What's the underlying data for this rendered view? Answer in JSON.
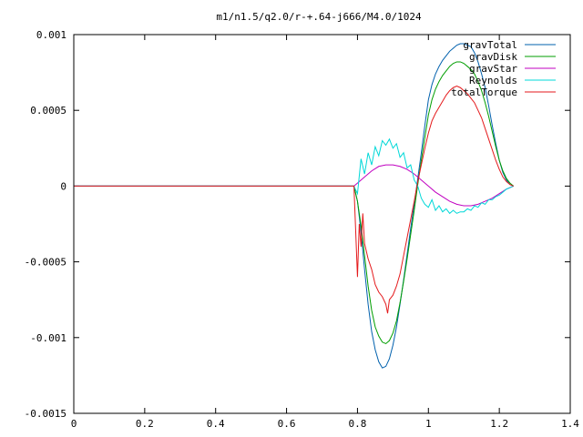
{
  "chart_data": {
    "type": "line",
    "title": "m1/n1.5/q2.0/r-+.64-j666/M4.0/1024",
    "xlabel": "",
    "ylabel": "",
    "xlim": [
      0,
      1.4
    ],
    "ylim": [
      -0.0015,
      0.001
    ],
    "xticks": [
      {
        "v": 0,
        "label": "0"
      },
      {
        "v": 0.2,
        "label": "0.2"
      },
      {
        "v": 0.4,
        "label": "0.4"
      },
      {
        "v": 0.6,
        "label": "0.6"
      },
      {
        "v": 0.8,
        "label": "0.8"
      },
      {
        "v": 1.0,
        "label": "1"
      },
      {
        "v": 1.2,
        "label": "1.2"
      },
      {
        "v": 1.4,
        "label": "1.4"
      }
    ],
    "yticks": [
      {
        "v": 0.001,
        "label": "0.001"
      },
      {
        "v": 0.0005,
        "label": "0.0005"
      },
      {
        "v": 0,
        "label": "0"
      },
      {
        "v": -0.0005,
        "label": "-0.0005"
      },
      {
        "v": -0.001,
        "label": "-0.001"
      },
      {
        "v": -0.0015,
        "label": "-0.0015"
      }
    ],
    "grid": false,
    "legend_position": "top-right",
    "series": [
      {
        "name": "gravTotal",
        "color": "#0060ad",
        "x": [
          0,
          0.79,
          0.8,
          0.81,
          0.82,
          0.83,
          0.84,
          0.85,
          0.86,
          0.87,
          0.88,
          0.89,
          0.9,
          0.91,
          0.92,
          0.93,
          0.94,
          0.95,
          0.96,
          0.97,
          0.98,
          0.99,
          1.0,
          1.01,
          1.02,
          1.03,
          1.04,
          1.05,
          1.06,
          1.07,
          1.08,
          1.09,
          1.1,
          1.11,
          1.12,
          1.13,
          1.14,
          1.15,
          1.16,
          1.17,
          1.18,
          1.19,
          1.2,
          1.21,
          1.22,
          1.23,
          1.24
        ],
        "y": [
          0,
          0,
          -0.0001,
          -0.0003,
          -0.00055,
          -0.00078,
          -0.00096,
          -0.00108,
          -0.00116,
          -0.0012,
          -0.00119,
          -0.00114,
          -0.00105,
          -0.00093,
          -0.00078,
          -0.00062,
          -0.00045,
          -0.00028,
          -0.00012,
          5e-05,
          0.00022,
          0.0004,
          0.00057,
          0.00067,
          0.00074,
          0.00079,
          0.00083,
          0.00086,
          0.00089,
          0.00091,
          0.00093,
          0.00094,
          0.00094,
          0.00093,
          0.00092,
          0.00088,
          0.00082,
          0.00074,
          0.00065,
          0.00053,
          0.0004,
          0.00028,
          0.00017,
          9e-05,
          4e-05,
          1e-05,
          0
        ]
      },
      {
        "name": "gravDisk",
        "color": "#009e00",
        "x": [
          0,
          0.79,
          0.8,
          0.81,
          0.82,
          0.83,
          0.84,
          0.85,
          0.86,
          0.87,
          0.88,
          0.89,
          0.9,
          0.91,
          0.92,
          0.93,
          0.94,
          0.95,
          0.96,
          0.97,
          0.98,
          0.99,
          1.0,
          1.01,
          1.02,
          1.03,
          1.04,
          1.05,
          1.06,
          1.07,
          1.08,
          1.09,
          1.1,
          1.11,
          1.12,
          1.13,
          1.14,
          1.15,
          1.16,
          1.17,
          1.18,
          1.19,
          1.2,
          1.21,
          1.22,
          1.23,
          1.24
        ],
        "y": [
          0,
          0,
          -0.0001,
          -0.00026,
          -0.00046,
          -0.00066,
          -0.00082,
          -0.00093,
          -0.00099,
          -0.00103,
          -0.00104,
          -0.00102,
          -0.00097,
          -0.00089,
          -0.00077,
          -0.00063,
          -0.00048,
          -0.00032,
          -0.00016,
          1e-05,
          0.00017,
          0.00032,
          0.00047,
          0.00057,
          0.00064,
          0.00069,
          0.00073,
          0.00076,
          0.00079,
          0.00081,
          0.00082,
          0.00082,
          0.00081,
          0.00079,
          0.00077,
          0.00074,
          0.00069,
          0.00063,
          0.00055,
          0.00046,
          0.00036,
          0.00026,
          0.00017,
          0.0001,
          5e-05,
          2e-05,
          0
        ]
      },
      {
        "name": "gravStar",
        "color": "#c000c0",
        "x": [
          0,
          0.79,
          0.8,
          0.82,
          0.84,
          0.86,
          0.88,
          0.9,
          0.92,
          0.94,
          0.96,
          0.98,
          1.0,
          1.02,
          1.04,
          1.06,
          1.08,
          1.1,
          1.12,
          1.14,
          1.16,
          1.18,
          1.2,
          1.22,
          1.24
        ],
        "y": [
          0,
          0,
          2e-05,
          6e-05,
          0.0001,
          0.00013,
          0.00014,
          0.00014,
          0.00013,
          0.00011,
          8e-05,
          4e-05,
          0.0,
          -4e-05,
          -7e-05,
          -0.0001,
          -0.00012,
          -0.00013,
          -0.00013,
          -0.00012,
          -0.0001,
          -8e-05,
          -5e-05,
          -2e-05,
          0
        ]
      },
      {
        "name": "Reynolds",
        "color": "#00d8d8",
        "x": [
          0,
          0.79,
          0.8,
          0.81,
          0.82,
          0.83,
          0.84,
          0.85,
          0.86,
          0.87,
          0.88,
          0.89,
          0.9,
          0.91,
          0.92,
          0.93,
          0.94,
          0.95,
          0.96,
          0.97,
          0.98,
          0.99,
          1.0,
          1.01,
          1.02,
          1.03,
          1.04,
          1.05,
          1.06,
          1.07,
          1.08,
          1.09,
          1.1,
          1.11,
          1.12,
          1.13,
          1.14,
          1.15,
          1.16,
          1.17,
          1.18,
          1.19,
          1.2,
          1.21,
          1.22,
          1.23,
          1.24
        ],
        "y": [
          0,
          0,
          -5e-05,
          0.00018,
          8e-05,
          0.00022,
          0.00014,
          0.00026,
          0.0002,
          0.0003,
          0.00027,
          0.00031,
          0.00025,
          0.00028,
          0.00019,
          0.00022,
          0.00012,
          0.00014,
          4e-05,
          0.0,
          -8e-05,
          -0.00012,
          -0.00014,
          -9e-05,
          -0.00016,
          -0.00013,
          -0.00017,
          -0.00015,
          -0.00018,
          -0.00016,
          -0.00018,
          -0.00017,
          -0.00017,
          -0.00015,
          -0.00016,
          -0.00013,
          -0.00014,
          -0.00011,
          -0.00012,
          -9e-05,
          -9e-05,
          -7e-05,
          -6e-05,
          -4e-05,
          -2e-05,
          -1e-05,
          0
        ]
      },
      {
        "name": "totalTorque",
        "color": "#e41a1c",
        "x": [
          0,
          0.79,
          0.8,
          0.805,
          0.81,
          0.815,
          0.82,
          0.83,
          0.84,
          0.85,
          0.86,
          0.87,
          0.88,
          0.885,
          0.89,
          0.9,
          0.91,
          0.92,
          0.93,
          0.94,
          0.95,
          0.96,
          0.97,
          0.98,
          0.99,
          1.0,
          1.01,
          1.02,
          1.03,
          1.04,
          1.05,
          1.06,
          1.07,
          1.08,
          1.09,
          1.1,
          1.11,
          1.12,
          1.13,
          1.14,
          1.15,
          1.16,
          1.17,
          1.18,
          1.19,
          1.2,
          1.21,
          1.22,
          1.23,
          1.24
        ],
        "y": [
          0,
          0,
          -0.0006,
          -0.00025,
          -0.0004,
          -0.00018,
          -0.00038,
          -0.00048,
          -0.00055,
          -0.00065,
          -0.0007,
          -0.00073,
          -0.00078,
          -0.00084,
          -0.00075,
          -0.00072,
          -0.00066,
          -0.00058,
          -0.00046,
          -0.00034,
          -0.00022,
          -0.0001,
          3e-05,
          0.00014,
          0.00025,
          0.00035,
          0.00043,
          0.00048,
          0.00052,
          0.00056,
          0.0006,
          0.00063,
          0.00065,
          0.00066,
          0.00065,
          0.00063,
          0.00061,
          0.00058,
          0.00055,
          0.0005,
          0.00045,
          0.00038,
          0.00031,
          0.00024,
          0.00017,
          0.00011,
          6e-05,
          3e-05,
          1e-05,
          0
        ]
      }
    ]
  }
}
